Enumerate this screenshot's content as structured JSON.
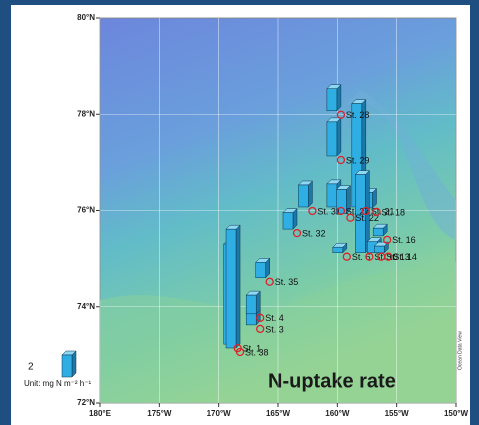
{
  "map": {
    "title": "N-uptake rate",
    "credit": "Ocean Data View",
    "lat_ticks": [
      {
        "value": 80,
        "label": "80°N"
      },
      {
        "value": 78,
        "label": "78°N"
      },
      {
        "value": 76,
        "label": "76°N"
      },
      {
        "value": 74,
        "label": "74°N"
      },
      {
        "value": 72,
        "label": "72°N"
      }
    ],
    "lon_ticks": [
      {
        "value": -180,
        "label": "180°E"
      },
      {
        "value": -175,
        "label": "175°W"
      },
      {
        "value": -170,
        "label": "170°W"
      },
      {
        "value": -165,
        "label": "165°W"
      },
      {
        "value": -160,
        "label": "160°W"
      },
      {
        "value": -155,
        "label": "155°W"
      },
      {
        "value": -150,
        "label": "150°W"
      }
    ],
    "legend": {
      "value": 2,
      "unit": "Unit: mg N m⁻² h⁻¹"
    },
    "stations": [
      {
        "label": "St. 1",
        "lon": -168.4,
        "lat": 73.14,
        "value": 9.1
      },
      {
        "label": "St. 38",
        "lon": -168.2,
        "lat": 73.06,
        "value": 10.8
      },
      {
        "label": "St. 3",
        "lon": -166.5,
        "lat": 73.54,
        "value": 1.6
      },
      {
        "label": "St. 4",
        "lon": -166.5,
        "lat": 73.77,
        "value": 1.7
      },
      {
        "label": "St. 35",
        "lon": -165.7,
        "lat": 74.52,
        "value": 1.4
      },
      {
        "label": "St. 32",
        "lon": -163.4,
        "lat": 75.53,
        "value": 1.5
      },
      {
        "label": "St. 31",
        "lon": -162.1,
        "lat": 75.99,
        "value": 2.0
      },
      {
        "label": "St. 27",
        "lon": -159.7,
        "lat": 75.99,
        "value": 2.1
      },
      {
        "label": "St. 22",
        "lon": -158.9,
        "lat": 75.85,
        "value": 2.2
      },
      {
        "label": "St. 29",
        "lon": -159.7,
        "lat": 77.05,
        "value": 3.1
      },
      {
        "label": "St. 28",
        "lon": -159.7,
        "lat": 77.99,
        "value": 2.0
      },
      {
        "label": "St. 21",
        "lon": -157.6,
        "lat": 75.99,
        "value": 9.4
      },
      {
        "label": "St. 18",
        "lon": -156.7,
        "lat": 75.97,
        "value": 1.4
      },
      {
        "label": "St. 16",
        "lon": -155.8,
        "lat": 75.39,
        "value": 0.7
      },
      {
        "label": "St. 6",
        "lon": -159.2,
        "lat": 75.04,
        "value": 0.5
      },
      {
        "label": "St. 10",
        "lon": -157.3,
        "lat": 75.04,
        "value": 7.1
      },
      {
        "label": "St. 13",
        "lon": -156.3,
        "lat": 75.04,
        "value": 1.0
      },
      {
        "label": "St. 14",
        "lon": -155.7,
        "lat": 75.04,
        "value": 0.6
      }
    ]
  }
}
